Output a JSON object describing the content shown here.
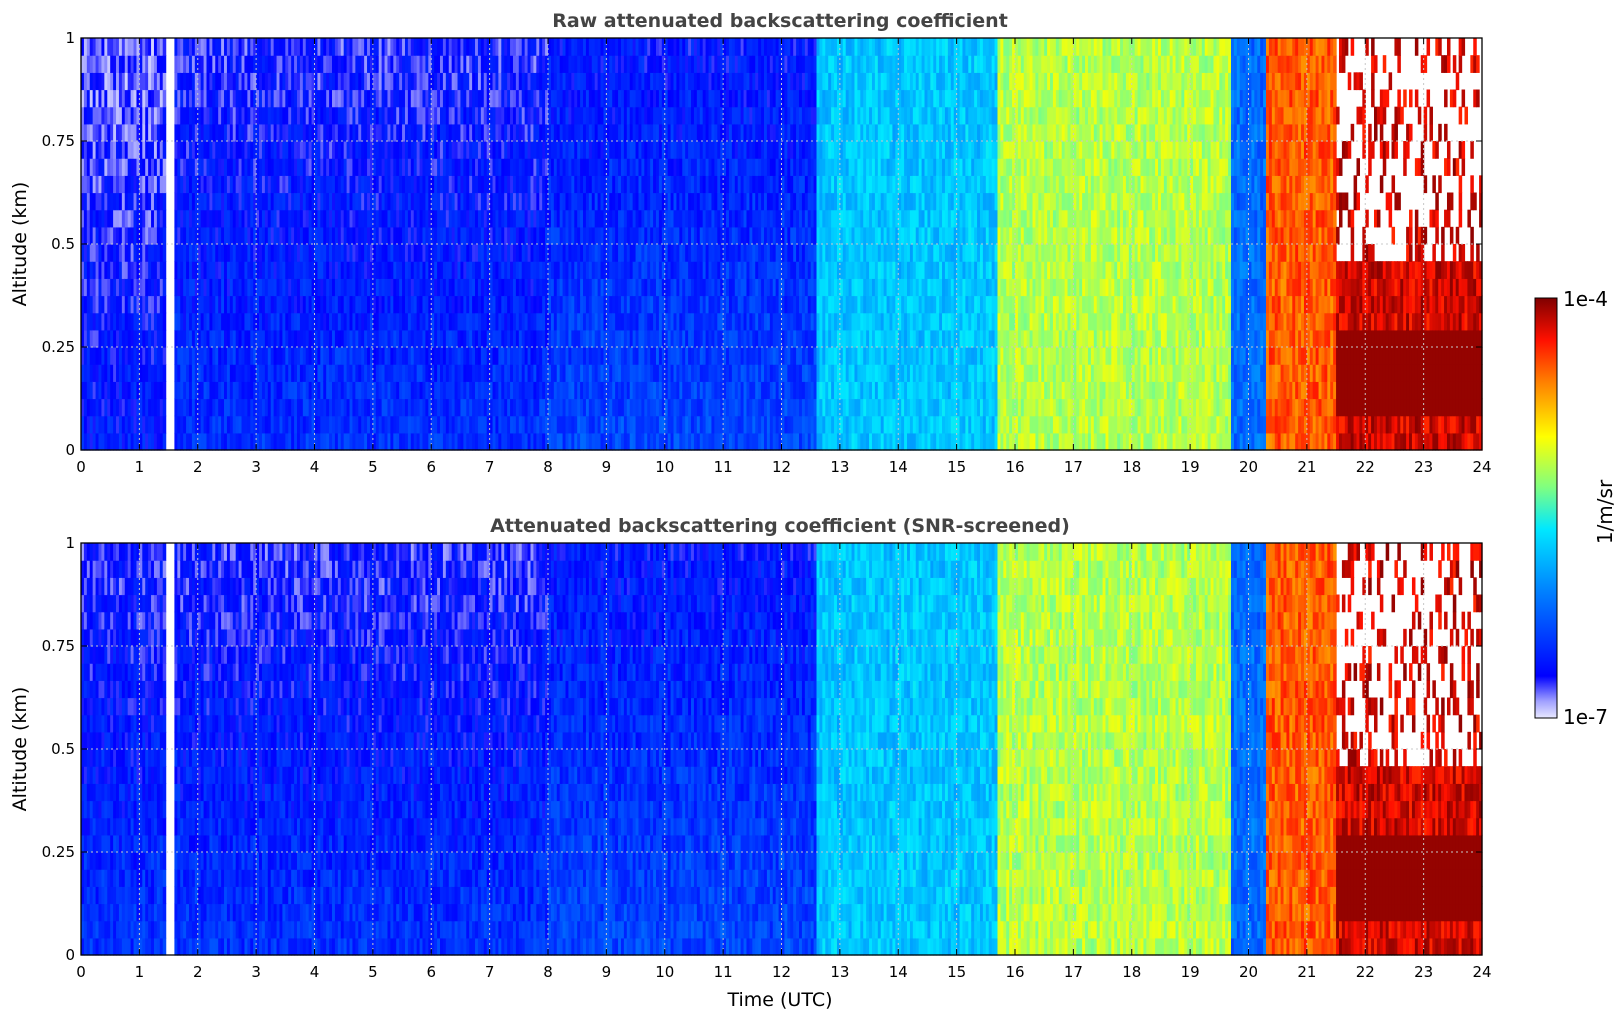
{
  "chart_data": [
    {
      "type": "heatmap",
      "title": "Raw attenuated backscattering coefficient",
      "xlabel": "",
      "ylabel": "Altitude (km)",
      "xlim": [
        0,
        24
      ],
      "ylim": [
        0,
        1
      ],
      "x_ticks": [
        "0",
        "1",
        "2",
        "3",
        "4",
        "5",
        "6",
        "7",
        "8",
        "9",
        "10",
        "11",
        "12",
        "13",
        "14",
        "15",
        "16",
        "17",
        "18",
        "19",
        "20",
        "21",
        "22",
        "23",
        "24"
      ],
      "y_ticks": [
        "0",
        "0.25",
        "0.5",
        "0.75",
        "1"
      ],
      "grid": true,
      "scale": "log",
      "value_range": [
        1e-07,
        0.0001
      ],
      "units": "1/m/sr",
      "approx_log10_level_by_time": [
        {
          "t0": 0,
          "t1": 1.45,
          "level": -6.7
        },
        {
          "t0": 1.6,
          "t1": 8,
          "level": -6.6
        },
        {
          "t0": 8,
          "t1": 12.6,
          "level": -6.5
        },
        {
          "t0": 12.6,
          "t1": 15.7,
          "level": -5.8
        },
        {
          "t0": 15.7,
          "t1": 19.7,
          "level": -5.2
        },
        {
          "t0": 19.7,
          "t1": 20.3,
          "level": -6.2
        },
        {
          "t0": 20.3,
          "t1": 21.5,
          "level": -4.5
        },
        {
          "t0": 21.5,
          "t1": 24,
          "level": -4.2
        }
      ]
    },
    {
      "type": "heatmap",
      "title": "Attenuated backscattering coefficient (SNR-screened)",
      "xlabel": "Time (UTC)",
      "ylabel": "Altitude (km)",
      "xlim": [
        0,
        24
      ],
      "ylim": [
        0,
        1
      ],
      "x_ticks": [
        "0",
        "1",
        "2",
        "3",
        "4",
        "5",
        "6",
        "7",
        "8",
        "9",
        "10",
        "11",
        "12",
        "13",
        "14",
        "15",
        "16",
        "17",
        "18",
        "19",
        "20",
        "21",
        "22",
        "23",
        "24"
      ],
      "y_ticks": [
        "0",
        "0.25",
        "0.5",
        "0.75",
        "1"
      ],
      "grid": true,
      "scale": "log",
      "value_range": [
        1e-07,
        0.0001
      ],
      "units": "1/m/sr",
      "approx_log10_level_by_time": [
        {
          "t0": 0,
          "t1": 1.45,
          "level": -6.6
        },
        {
          "t0": 1.6,
          "t1": 8,
          "level": -6.6
        },
        {
          "t0": 8,
          "t1": 12.6,
          "level": -6.5
        },
        {
          "t0": 12.6,
          "t1": 15.7,
          "level": -5.8
        },
        {
          "t0": 15.7,
          "t1": 19.7,
          "level": -5.2
        },
        {
          "t0": 19.7,
          "t1": 20.3,
          "level": -6.2
        },
        {
          "t0": 20.3,
          "t1": 21.5,
          "level": -4.5
        },
        {
          "t0": 21.5,
          "t1": 24,
          "level": -4.2
        }
      ]
    }
  ],
  "colorbar": {
    "max_label": "1e-4",
    "min_label": "1e-7",
    "label": "1/m/sr",
    "colormap": "jet",
    "colors": [
      "#e8e8ff",
      "#0000ff",
      "#0080ff",
      "#00e0ff",
      "#80ff80",
      "#ffff00",
      "#ff8000",
      "#ff0000",
      "#800000"
    ]
  }
}
